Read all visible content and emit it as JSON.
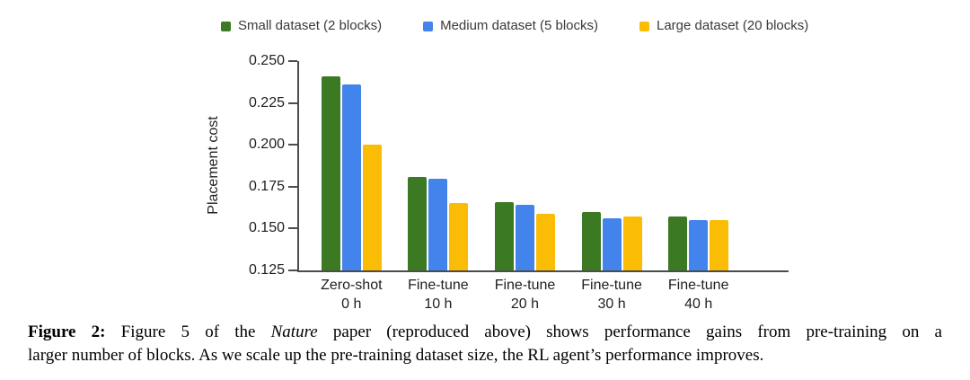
{
  "chart_data": {
    "type": "bar",
    "title": "",
    "xlabel": "",
    "ylabel": "Placement cost",
    "ylim": [
      0.125,
      0.25
    ],
    "yticks": [
      "0.250",
      "0.225",
      "0.200",
      "0.175",
      "0.150",
      "0.125"
    ],
    "grid": false,
    "legend_position": "top",
    "categories": [
      {
        "line1": "Zero-shot",
        "line2": "0 h"
      },
      {
        "line1": "Fine-tune",
        "line2": "10 h"
      },
      {
        "line1": "Fine-tune",
        "line2": "20 h"
      },
      {
        "line1": "Fine-tune",
        "line2": "30 h"
      },
      {
        "line1": "Fine-tune",
        "line2": "40 h"
      }
    ],
    "series": [
      {
        "key": "small-dataset",
        "name": "Small dataset (2 blocks)",
        "color": "#3b7a22",
        "values": [
          0.241,
          0.181,
          0.166,
          0.16,
          0.157
        ]
      },
      {
        "key": "medium-dataset",
        "name": "Medium dataset (5 blocks)",
        "color": "#4383ec",
        "values": [
          0.236,
          0.18,
          0.164,
          0.156,
          0.155
        ]
      },
      {
        "key": "large-dataset",
        "name": "Large dataset (20 blocks)",
        "color": "#fbbc05",
        "values": [
          0.2,
          0.165,
          0.159,
          0.157,
          0.155
        ]
      }
    ],
    "colors": {
      "axis": "#4c4c4c",
      "text": "#1f1f1f"
    }
  },
  "caption": {
    "bold_label": "Figure 2:",
    "line1_before_italic": " Figure 5 of the ",
    "line1_italic": "Nature",
    "line1_after_italic": " paper (reproduced above) shows performance gains from pre-training on a",
    "line2": "larger number of blocks. As we scale up the pre-training dataset size, the RL agent’s performance improves."
  }
}
